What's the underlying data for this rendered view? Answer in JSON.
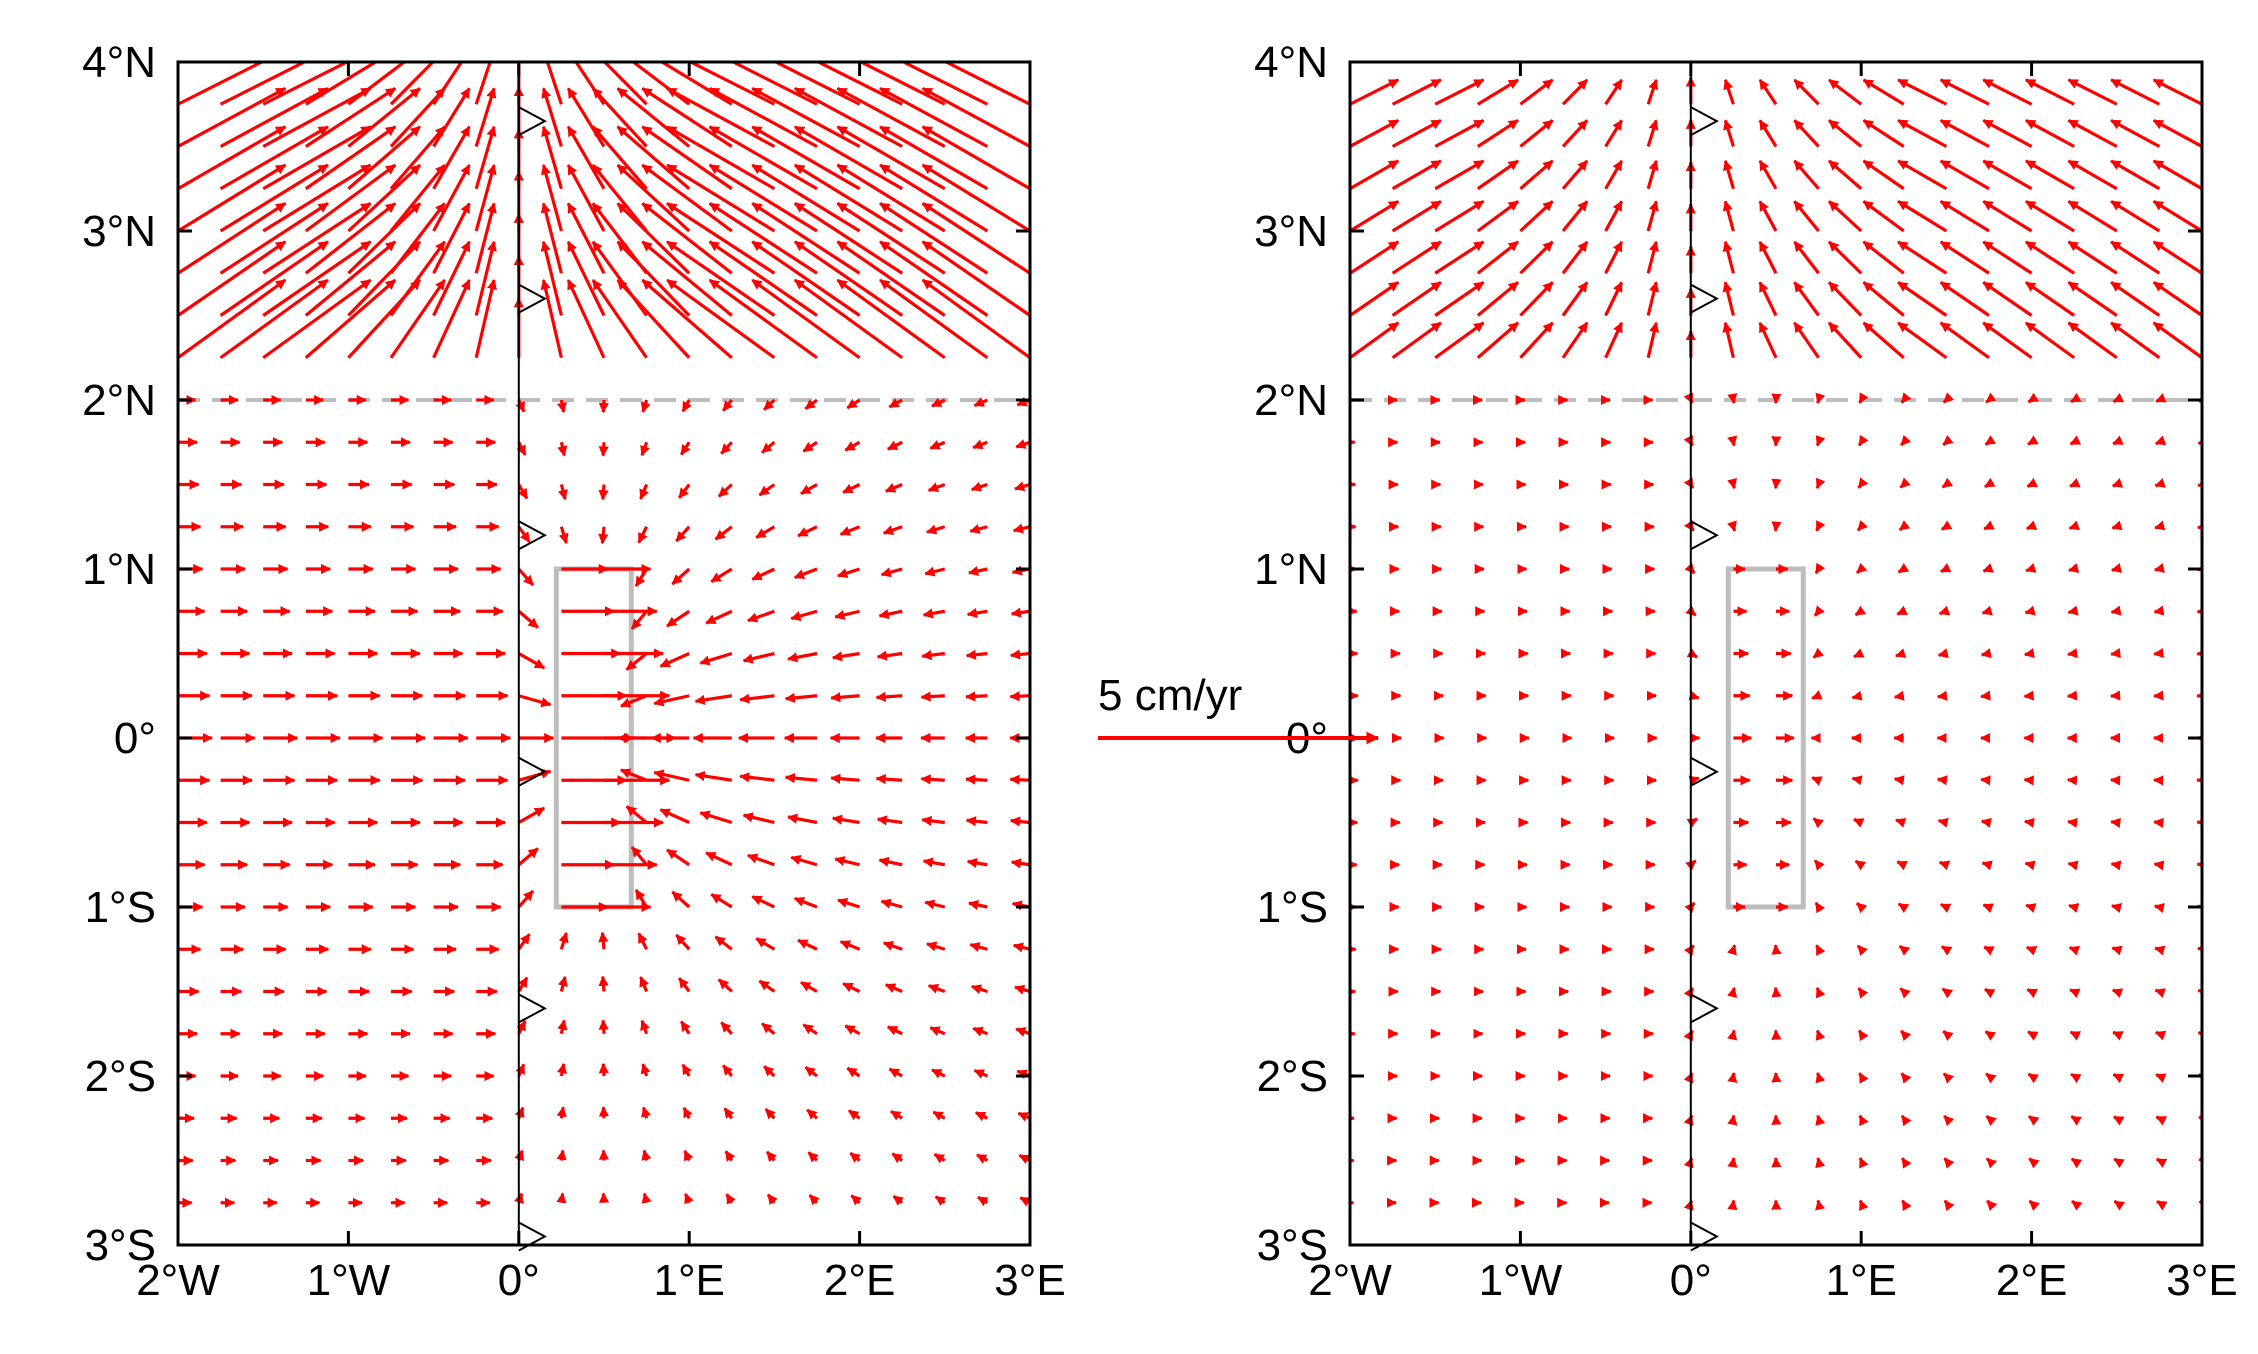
{
  "chart_data": [
    {
      "type": "vector-field",
      "panel": "left",
      "xlim": [
        -2,
        3
      ],
      "ylim": [
        -3,
        4
      ],
      "xticks": [
        -2,
        -1,
        0,
        1,
        2,
        3
      ],
      "yticks": [
        -3,
        -2,
        -1,
        0,
        1,
        2,
        3,
        4
      ],
      "xtick_labels": [
        "2°W",
        "1°W",
        "0°",
        "1°E",
        "2°E",
        "3°E"
      ],
      "ytick_labels": [
        "3°S",
        "2°S",
        "1°S",
        "0°",
        "1°N",
        "2°N",
        "3°N",
        "4°N"
      ],
      "grid": false,
      "arrow_color": "#ff0000",
      "guides": {
        "vertical_line_x": 0,
        "dashed_line_y": 2,
        "box": {
          "x": [
            0.22,
            0.66
          ],
          "y": [
            -1,
            1
          ]
        },
        "markers_y": [
          3.65,
          2.6,
          1.2,
          -0.2,
          -1.6,
          -2.95
        ]
      },
      "source_box": {
        "x": [
          0.22,
          0.66
        ],
        "y": [
          -1,
          1
        ]
      },
      "source_strength": 1.0,
      "north_field": "converging flow toward 0°E near 2.3–4°N",
      "north_strength": 1.0
    },
    {
      "type": "vector-field",
      "panel": "right",
      "xlim": [
        -2,
        3
      ],
      "ylim": [
        -3,
        4
      ],
      "xticks": [
        -2,
        -1,
        0,
        1,
        2,
        3
      ],
      "yticks": [
        -3,
        -2,
        -1,
        0,
        1,
        2,
        3,
        4
      ],
      "xtick_labels": [
        "2°W",
        "1°W",
        "0°",
        "1°E",
        "2°E",
        "3°E"
      ],
      "ytick_labels": [
        "3°S",
        "2°S",
        "1°S",
        "0°",
        "1°N",
        "2°N",
        "3°N",
        "4°N"
      ],
      "grid": false,
      "arrow_color": "#ff0000",
      "guides": {
        "vertical_line_x": 0,
        "dashed_line_y": 2,
        "box": {
          "x": [
            0.22,
            0.66
          ],
          "y": [
            -1,
            1
          ]
        },
        "markers_y": [
          3.65,
          2.6,
          1.2,
          -0.2,
          -1.6,
          -2.95
        ]
      },
      "source_box": {
        "x": [
          0.22,
          0.66
        ],
        "y": [
          -1,
          1
        ]
      },
      "source_strength": 0.25,
      "north_field": "converging flow toward 0°E near 2.3–4°N",
      "north_strength": 0.45
    }
  ],
  "scale_arrow": {
    "label": "5 cm/yr",
    "value": 5,
    "unit": "cm/yr"
  }
}
